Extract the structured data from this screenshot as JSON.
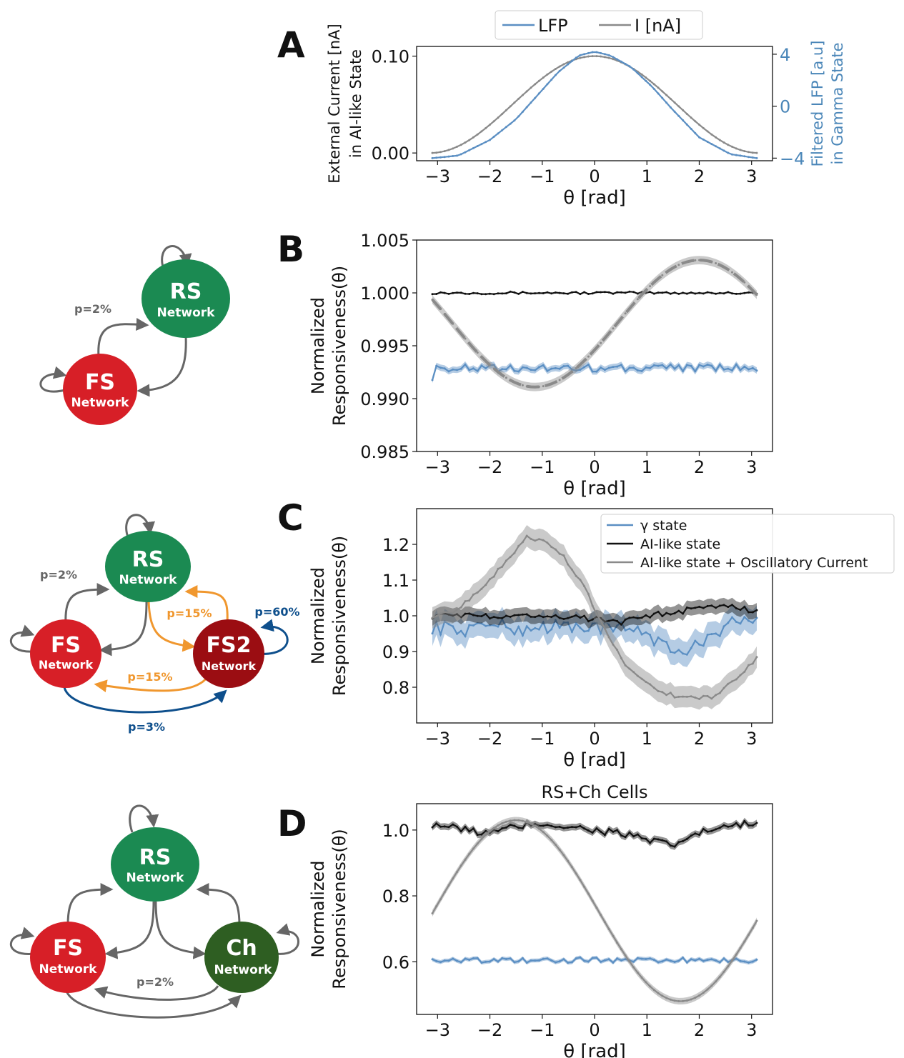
{
  "colors": {
    "blue": "#5b8fc3",
    "gray": "#8a8a8a",
    "black": "#111111",
    "rs": "#1b8a52",
    "fs": "#d71f27",
    "fs2": "#9b0d12",
    "ch": "#2e5e22",
    "edge": "#666666",
    "orange": "#f0972e",
    "navy": "#0e4f8c",
    "axis_right": "#4a86b8"
  },
  "networks": {
    "rs_name": "RS",
    "fs_name": "FS",
    "fs2_name": "FS2",
    "ch_name": "Ch",
    "net_word": "Network",
    "p2": "p=2%",
    "p15": "p=15%",
    "p60": "p=60%",
    "p3": "p=3%"
  },
  "chart_data": [
    {
      "panel_letter": "A",
      "type": "line",
      "xlabel": "θ [rad]",
      "ylabel_lines": [
        "External Current [nA]",
        "in AI-like State"
      ],
      "y2label_lines": [
        "Filtered LFP [a.u]",
        "in Gamma State"
      ],
      "xlim": [
        -3.4,
        3.4
      ],
      "ylim": [
        -0.008,
        0.11
      ],
      "y2lim": [
        -4.2,
        4.6
      ],
      "xticks": [
        -3,
        -2,
        -1,
        0,
        1,
        2,
        3
      ],
      "xtick_labels": [
        "−3",
        "−2",
        "−1",
        "0",
        "1",
        "2",
        "3"
      ],
      "yticks": [
        0.0,
        0.1
      ],
      "ytick_labels": [
        "0.00",
        "0.10"
      ],
      "y2ticks": [
        -4,
        0,
        4
      ],
      "y2tick_labels": [
        "−4",
        "0",
        "4"
      ],
      "legend": [
        "LFP",
        "I [nA]"
      ],
      "legend_position": "top-center",
      "series": [
        {
          "name": "I [nA]",
          "color_key": "gray",
          "axis": "left",
          "shape": "cosine",
          "x_range": [
            -3.1,
            3.1
          ],
          "amplitude": 0.05,
          "offset": 0.05,
          "phase": 0
        },
        {
          "name": "LFP",
          "color_key": "blue",
          "axis": "right",
          "x": [
            -3.1,
            -2.6,
            -2.0,
            -1.5,
            -1.1,
            -0.7,
            -0.3,
            0.0,
            0.3,
            0.7,
            1.1,
            1.5,
            2.0,
            2.6,
            3.1
          ],
          "y": [
            -4.0,
            -3.8,
            -2.6,
            -1.0,
            0.8,
            2.6,
            3.9,
            4.2,
            3.9,
            3.0,
            1.5,
            -0.3,
            -2.4,
            -3.7,
            -4.0
          ]
        }
      ]
    },
    {
      "panel_letter": "B",
      "type": "line",
      "xlabel": "θ [rad]",
      "ylabel_lines": [
        "Normalized",
        "Responsiveness(θ)"
      ],
      "xlim": [
        -3.4,
        3.4
      ],
      "ylim": [
        0.985,
        1.005
      ],
      "xticks": [
        -3,
        -2,
        -1,
        0,
        1,
        2,
        3
      ],
      "xtick_labels": [
        "−3",
        "−2",
        "−1",
        "0",
        "1",
        "2",
        "3"
      ],
      "yticks": [
        0.985,
        0.99,
        0.995,
        1.0,
        1.005
      ],
      "ytick_labels": [
        "0.985",
        "0.990",
        "0.995",
        "1.000",
        "1.005"
      ],
      "series": [
        {
          "name": "",
          "color_key": "black",
          "shape": "noise",
          "x_range": [
            -3.1,
            3.1
          ],
          "mean": 1.0,
          "jitter": 0.00012,
          "band": 6e-05
        },
        {
          "name": "",
          "color_key": "blue",
          "shape": "noise",
          "x_range": [
            -3.1,
            3.1
          ],
          "mean": 0.9929,
          "jitter": 0.00035,
          "band": 0.0003,
          "start": 0.9921
        },
        {
          "name": "",
          "color_key": "gray",
          "shape": "cosine",
          "x_range": [
            -3.1,
            3.1
          ],
          "amplitude": 0.006,
          "offset": 0.9971,
          "phase": 2.0,
          "band": 0.0004,
          "dashed": true
        }
      ]
    },
    {
      "panel_letter": "C",
      "type": "line",
      "xlabel": "θ [rad]",
      "ylabel_lines": [
        "Normalized",
        "Responsiveness(θ)"
      ],
      "xlim": [
        -3.4,
        3.4
      ],
      "ylim": [
        0.7,
        1.3
      ],
      "xticks": [
        -3,
        -2,
        -1,
        0,
        1,
        2,
        3
      ],
      "xtick_labels": [
        "−3",
        "−2",
        "−1",
        "0",
        "1",
        "2",
        "3"
      ],
      "yticks": [
        0.8,
        0.9,
        1.0,
        1.1,
        1.2
      ],
      "ytick_labels": [
        "0.8",
        "0.9",
        "1.0",
        "1.1",
        "1.2"
      ],
      "legend": [
        "γ state",
        "AI-like state",
        "AI-like state + Oscillatory Current"
      ],
      "legend_position": "top-right",
      "series": [
        {
          "name": "γ state",
          "color_key": "blue",
          "x": [
            -3.1,
            -2.5,
            -2.0,
            -1.5,
            -1.0,
            -0.5,
            0.0,
            0.4,
            0.8,
            1.1,
            1.4,
            1.6,
            1.9,
            2.2,
            2.5,
            2.8,
            3.1
          ],
          "y": [
            0.97,
            0.96,
            0.98,
            0.96,
            0.97,
            0.97,
            0.97,
            0.96,
            0.97,
            0.94,
            0.91,
            0.89,
            0.91,
            0.95,
            0.97,
            0.99,
            0.98
          ],
          "band": 0.035,
          "jitter": 0.02
        },
        {
          "name": "AI-like state",
          "color_key": "black",
          "x": [
            -3.1,
            -2.0,
            -1.0,
            0.0,
            0.5,
            1.0,
            1.5,
            2.0,
            2.5,
            3.1
          ],
          "y": [
            1.0,
            1.0,
            1.0,
            0.99,
            0.98,
            1.0,
            1.01,
            1.02,
            1.03,
            1.01
          ],
          "band": 0.02,
          "jitter": 0.008
        },
        {
          "name": "AI-like state + Oscillatory Current",
          "color_key": "gray",
          "x": [
            -3.1,
            -2.7,
            -2.3,
            -2.0,
            -1.6,
            -1.3,
            -1.0,
            -0.6,
            -0.2,
            0.2,
            0.6,
            1.0,
            1.4,
            1.8,
            2.2,
            2.6,
            3.1
          ],
          "y": [
            1.0,
            1.01,
            1.06,
            1.1,
            1.17,
            1.22,
            1.21,
            1.17,
            1.08,
            0.96,
            0.86,
            0.81,
            0.78,
            0.77,
            0.77,
            0.81,
            0.88
          ],
          "band": 0.03,
          "jitter": 0.006
        }
      ]
    },
    {
      "panel_letter": "D",
      "title": "RS+Ch Cells",
      "type": "line",
      "xlabel": "θ [rad]",
      "ylabel_lines": [
        "Normalized",
        "Responsiveness(θ)"
      ],
      "xlim": [
        -3.4,
        3.4
      ],
      "ylim": [
        0.44,
        1.08
      ],
      "xticks": [
        -3,
        -2,
        -1,
        0,
        1,
        2,
        3
      ],
      "xtick_labels": [
        "−3",
        "−2",
        "−1",
        "0",
        "1",
        "2",
        "3"
      ],
      "yticks": [
        0.6,
        0.8,
        1.0
      ],
      "ytick_labels": [
        "0.6",
        "0.8",
        "1.0"
      ],
      "series": [
        {
          "name": "",
          "color_key": "black",
          "x": [
            -3.1,
            -2.5,
            -2.0,
            -1.5,
            -1.0,
            -0.5,
            0.0,
            0.5,
            1.0,
            1.5,
            1.8,
            2.2,
            2.6,
            3.1
          ],
          "y": [
            1.02,
            1.0,
            0.99,
            1.01,
            1.02,
            1.01,
            1.0,
            0.99,
            0.97,
            0.95,
            0.98,
            1.0,
            1.01,
            1.02
          ],
          "band": 0.01,
          "jitter": 0.012
        },
        {
          "name": "",
          "color_key": "blue",
          "shape": "noise",
          "x_range": [
            -3.1,
            3.1
          ],
          "mean": 0.605,
          "jitter": 0.008,
          "band": 0.006,
          "start": 0.615
        },
        {
          "name": "",
          "color_key": "gray",
          "shape": "cosine",
          "x_range": [
            -3.1,
            3.1
          ],
          "amplitude": 0.275,
          "offset": 0.755,
          "phase": -1.5,
          "band": 0.01
        }
      ]
    }
  ]
}
